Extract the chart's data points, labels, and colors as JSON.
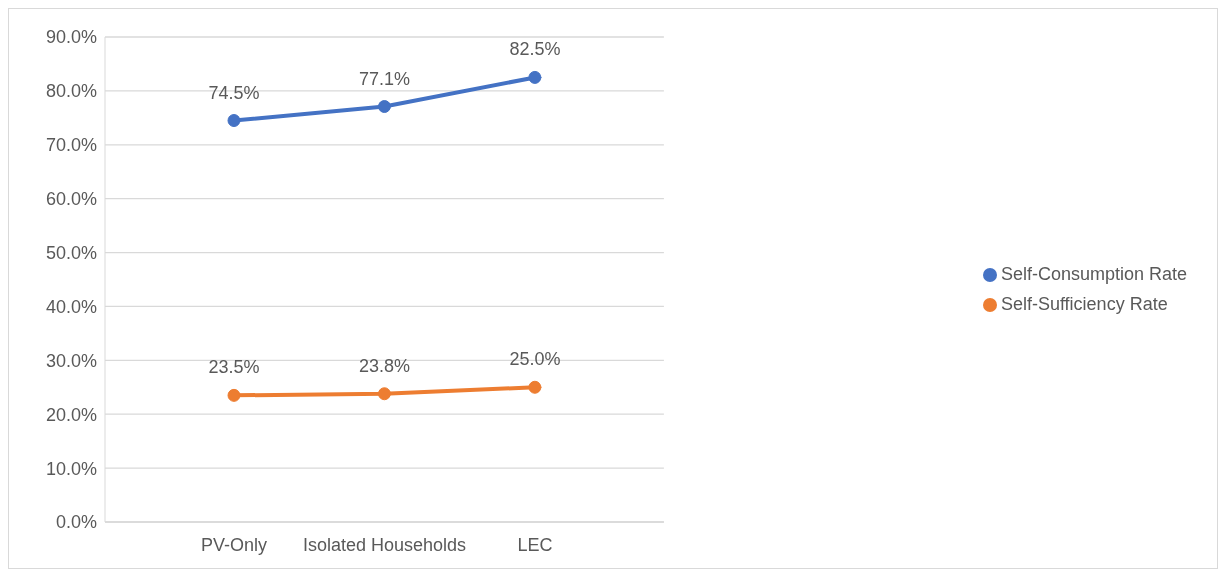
{
  "chart_data": {
    "type": "line",
    "categories": [
      "PV-Only",
      "Isolated Households",
      "LEC"
    ],
    "series": [
      {
        "name": "Self-Consumption Rate",
        "color": "#4472c4",
        "values": [
          74.5,
          77.1,
          82.5
        ],
        "value_labels": [
          "74.5%",
          "77.1%",
          "82.5%"
        ]
      },
      {
        "name": "Self-Sufficiency Rate",
        "color": "#ed7d31",
        "values": [
          23.5,
          23.8,
          25.0
        ],
        "value_labels": [
          "23.5%",
          "23.8%",
          "25.0%"
        ]
      }
    ],
    "ylim": [
      0,
      90
    ],
    "yticks": [
      {
        "value": 0,
        "label": "0.0%"
      },
      {
        "value": 10,
        "label": "10.0%"
      },
      {
        "value": 20,
        "label": "20.0%"
      },
      {
        "value": 30,
        "label": "30.0%"
      },
      {
        "value": 40,
        "label": "40.0%"
      },
      {
        "value": 50,
        "label": "50.0%"
      },
      {
        "value": 60,
        "label": "60.0%"
      },
      {
        "value": 70,
        "label": "70.0%"
      },
      {
        "value": 80,
        "label": "80.0%"
      },
      {
        "value": 90,
        "label": "90.0%"
      }
    ],
    "grid": "y",
    "legend": "right",
    "marker": "circle",
    "line_style": "solid"
  }
}
